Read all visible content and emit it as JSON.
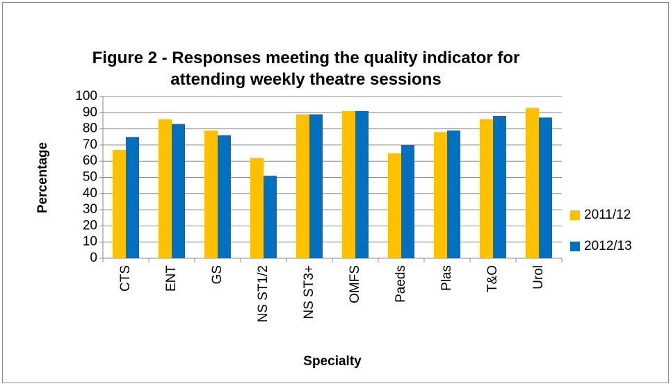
{
  "chart_data": {
    "type": "bar",
    "title": "Figure 2 - Responses meeting the quality indicator for attending weekly theatre sessions",
    "x_label": "Specialty",
    "y_label": "Percentage",
    "categories": [
      "CTS",
      "ENT",
      "GS",
      "NS ST1/2",
      "NS ST3+",
      "OMFS",
      "Paeds",
      "Plas",
      "T&O",
      "Urol"
    ],
    "series": [
      {
        "name": "2011/12",
        "color": "#FFC000",
        "values": [
          67,
          86,
          79,
          62,
          89,
          91,
          65,
          78,
          86,
          93
        ]
      },
      {
        "name": "2012/13",
        "color": "#0070C0",
        "values": [
          75,
          83,
          76,
          51,
          89,
          91,
          70,
          79,
          88,
          87
        ]
      }
    ],
    "ylim": [
      0,
      100
    ],
    "yticks": [
      0,
      10,
      20,
      30,
      40,
      50,
      60,
      70,
      80,
      90,
      100
    ],
    "grid": true,
    "legend": "right"
  }
}
